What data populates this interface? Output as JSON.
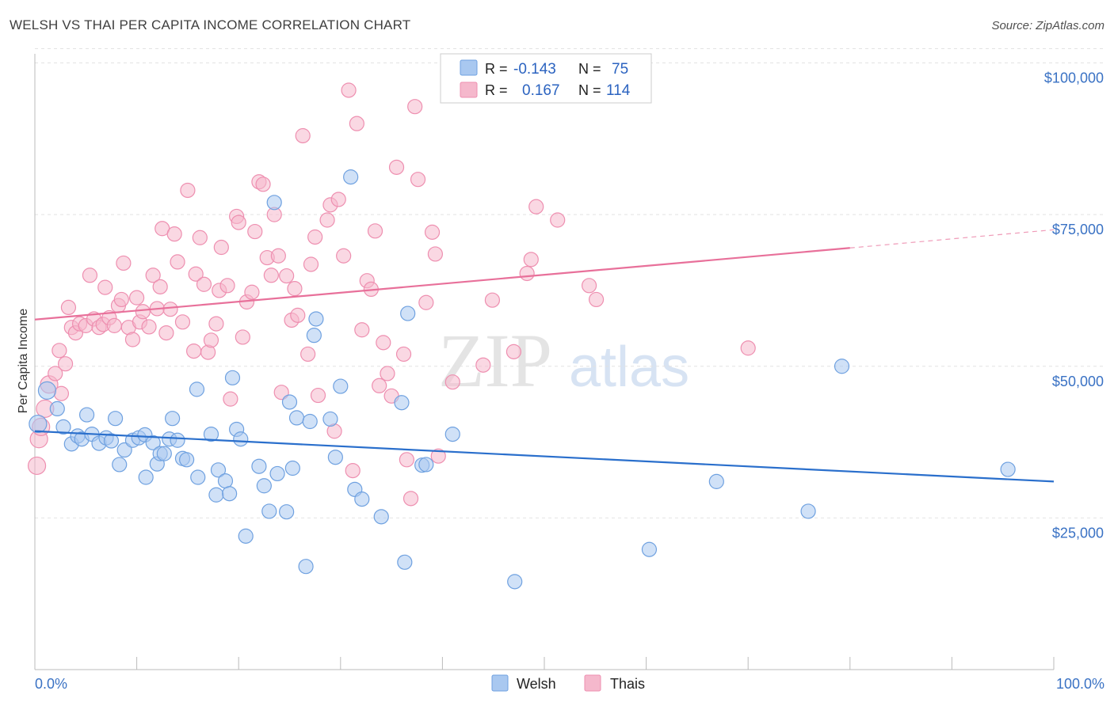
{
  "header": {
    "title": "WELSH VS THAI PER CAPITA INCOME CORRELATION CHART",
    "source": "Source: ZipAtlas.com"
  },
  "watermark": {
    "zip": "ZIP",
    "atlas": "atlas"
  },
  "legend_top": {
    "rows": [
      {
        "r_label": "R =",
        "r_value": "-0.143",
        "n_label": "N =",
        "n_value": "75",
        "color": "#a9c8f0"
      },
      {
        "r_label": "R =",
        "r_value": "0.167",
        "n_label": "N =",
        "n_value": "114",
        "color": "#f5b8cc"
      }
    ]
  },
  "legend_bottom": [
    {
      "label": "Welsh",
      "color": "#a9c8f0"
    },
    {
      "label": "Thais",
      "color": "#f5b8cc"
    }
  ],
  "chart_data": {
    "type": "scatter",
    "title": "WELSH VS THAI PER CAPITA INCOME CORRELATION CHART",
    "xlabel": "",
    "ylabel": "Per Capita Income",
    "xlim": [
      0,
      100
    ],
    "ylim": [
      0,
      105000
    ],
    "x_tick_labels": [
      "0.0%",
      "100.0%"
    ],
    "y_ticks": [
      25000,
      50000,
      75000,
      100000
    ],
    "y_tick_labels": [
      "$25,000",
      "$50,000",
      "$75,000",
      "$100,000"
    ],
    "grid": true,
    "legend_position": "top-center",
    "series": [
      {
        "name": "Welsh",
        "color": "#6fa1e0",
        "fill": "#a9c8f0",
        "trend": {
          "x0": 0,
          "y0": 39300,
          "x1": 100,
          "y1": 31000
        },
        "points": [
          [
            0.3,
            40500
          ],
          [
            1.2,
            46000
          ],
          [
            2.2,
            43000
          ],
          [
            2.8,
            40000
          ],
          [
            3.6,
            37200
          ],
          [
            4.2,
            38500
          ],
          [
            4.6,
            38000
          ],
          [
            5.1,
            42000
          ],
          [
            5.6,
            38800
          ],
          [
            6.3,
            37300
          ],
          [
            7.0,
            38200
          ],
          [
            7.5,
            37700
          ],
          [
            7.9,
            41400
          ],
          [
            8.3,
            33800
          ],
          [
            8.8,
            36200
          ],
          [
            9.6,
            37800
          ],
          [
            10.2,
            38200
          ],
          [
            10.8,
            38700
          ],
          [
            10.9,
            31700
          ],
          [
            11.6,
            37400
          ],
          [
            12.0,
            33900
          ],
          [
            12.3,
            35600
          ],
          [
            12.7,
            35600
          ],
          [
            13.2,
            38000
          ],
          [
            13.5,
            41400
          ],
          [
            14.0,
            37800
          ],
          [
            14.5,
            34800
          ],
          [
            14.9,
            34600
          ],
          [
            15.9,
            46200
          ],
          [
            16.0,
            31700
          ],
          [
            17.3,
            38800
          ],
          [
            17.8,
            28800
          ],
          [
            18.0,
            32900
          ],
          [
            18.7,
            31100
          ],
          [
            19.1,
            29000
          ],
          [
            19.4,
            48100
          ],
          [
            19.8,
            39600
          ],
          [
            20.2,
            38000
          ],
          [
            20.7,
            22000
          ],
          [
            22.0,
            33500
          ],
          [
            22.5,
            30300
          ],
          [
            23.0,
            26100
          ],
          [
            23.5,
            77000
          ],
          [
            23.8,
            32300
          ],
          [
            24.7,
            26000
          ],
          [
            25.0,
            44100
          ],
          [
            25.3,
            33200
          ],
          [
            25.7,
            41500
          ],
          [
            26.6,
            17000
          ],
          [
            27.0,
            40900
          ],
          [
            27.4,
            55100
          ],
          [
            27.6,
            57800
          ],
          [
            29.0,
            41300
          ],
          [
            29.5,
            35000
          ],
          [
            30.0,
            46700
          ],
          [
            31.0,
            81200
          ],
          [
            31.4,
            29700
          ],
          [
            32.1,
            28100
          ],
          [
            34.0,
            25200
          ],
          [
            36.0,
            44000
          ],
          [
            36.3,
            17700
          ],
          [
            36.6,
            58700
          ],
          [
            38.0,
            33700
          ],
          [
            38.4,
            33800
          ],
          [
            41.0,
            38800
          ],
          [
            47.1,
            14500
          ],
          [
            60.3,
            19800
          ],
          [
            66.9,
            31000
          ],
          [
            75.9,
            26100
          ],
          [
            79.2,
            50000
          ],
          [
            95.5,
            33000
          ]
        ]
      },
      {
        "name": "Thais",
        "color": "#ee8fb0",
        "fill": "#f5b8cc",
        "trend": {
          "x0": 0,
          "y0": 57700,
          "x1": 80,
          "y1": 69500,
          "dash_to_x": 100,
          "dash_to_y": 72500
        },
        "points": [
          [
            0.2,
            33600
          ],
          [
            0.4,
            38000
          ],
          [
            0.6,
            40000
          ],
          [
            1.0,
            43000
          ],
          [
            1.4,
            47000
          ],
          [
            2.0,
            48800
          ],
          [
            2.4,
            52600
          ],
          [
            2.6,
            45500
          ],
          [
            3.0,
            50400
          ],
          [
            3.3,
            59700
          ],
          [
            3.6,
            56400
          ],
          [
            4.0,
            55500
          ],
          [
            4.4,
            57000
          ],
          [
            5.0,
            56700
          ],
          [
            5.4,
            65000
          ],
          [
            5.8,
            57800
          ],
          [
            6.3,
            56400
          ],
          [
            6.7,
            56900
          ],
          [
            6.9,
            63000
          ],
          [
            7.3,
            58000
          ],
          [
            7.8,
            56700
          ],
          [
            8.2,
            60000
          ],
          [
            8.5,
            61000
          ],
          [
            8.7,
            67000
          ],
          [
            9.2,
            56400
          ],
          [
            9.6,
            54400
          ],
          [
            10.0,
            61300
          ],
          [
            10.3,
            57300
          ],
          [
            10.6,
            59000
          ],
          [
            11.2,
            56500
          ],
          [
            11.6,
            65000
          ],
          [
            12.0,
            59500
          ],
          [
            12.3,
            63100
          ],
          [
            12.5,
            72700
          ],
          [
            12.9,
            55500
          ],
          [
            13.3,
            59400
          ],
          [
            13.7,
            71800
          ],
          [
            14.0,
            67200
          ],
          [
            14.5,
            57300
          ],
          [
            15.0,
            79000
          ],
          [
            15.6,
            52500
          ],
          [
            15.8,
            65200
          ],
          [
            16.2,
            71200
          ],
          [
            16.6,
            63500
          ],
          [
            17.0,
            52300
          ],
          [
            17.3,
            54300
          ],
          [
            17.8,
            57000
          ],
          [
            18.1,
            62500
          ],
          [
            18.3,
            69600
          ],
          [
            18.9,
            63300
          ],
          [
            19.2,
            44600
          ],
          [
            19.8,
            74700
          ],
          [
            20.0,
            73700
          ],
          [
            20.4,
            54800
          ],
          [
            20.8,
            60600
          ],
          [
            21.3,
            62200
          ],
          [
            21.6,
            72200
          ],
          [
            22.0,
            80400
          ],
          [
            22.4,
            80000
          ],
          [
            22.8,
            67900
          ],
          [
            23.2,
            65000
          ],
          [
            23.5,
            75000
          ],
          [
            23.9,
            68200
          ],
          [
            24.2,
            45700
          ],
          [
            24.7,
            64900
          ],
          [
            25.2,
            57600
          ],
          [
            25.5,
            62800
          ],
          [
            25.8,
            58400
          ],
          [
            26.3,
            88000
          ],
          [
            26.8,
            52000
          ],
          [
            27.1,
            66800
          ],
          [
            27.5,
            71300
          ],
          [
            27.8,
            45200
          ],
          [
            28.7,
            74100
          ],
          [
            29.0,
            76600
          ],
          [
            29.4,
            39300
          ],
          [
            29.8,
            77500
          ],
          [
            30.3,
            68200
          ],
          [
            30.8,
            95500
          ],
          [
            31.2,
            32800
          ],
          [
            31.6,
            90000
          ],
          [
            32.1,
            56000
          ],
          [
            32.6,
            64100
          ],
          [
            33.0,
            62700
          ],
          [
            33.4,
            72300
          ],
          [
            33.8,
            46800
          ],
          [
            34.2,
            53900
          ],
          [
            34.6,
            48800
          ],
          [
            35.0,
            45100
          ],
          [
            35.5,
            82800
          ],
          [
            36.2,
            52000
          ],
          [
            36.5,
            34600
          ],
          [
            36.9,
            28200
          ],
          [
            37.3,
            92800
          ],
          [
            37.6,
            80800
          ],
          [
            38.4,
            60500
          ],
          [
            39.0,
            72100
          ],
          [
            39.3,
            68500
          ],
          [
            39.6,
            35200
          ],
          [
            41.0,
            47400
          ],
          [
            44.0,
            50200
          ],
          [
            44.9,
            60900
          ],
          [
            47.0,
            52400
          ],
          [
            48.3,
            65300
          ],
          [
            48.7,
            67600
          ],
          [
            49.2,
            76300
          ],
          [
            51.3,
            74100
          ],
          [
            54.4,
            63300
          ],
          [
            55.1,
            61000
          ],
          [
            70.0,
            53000
          ]
        ]
      }
    ]
  }
}
